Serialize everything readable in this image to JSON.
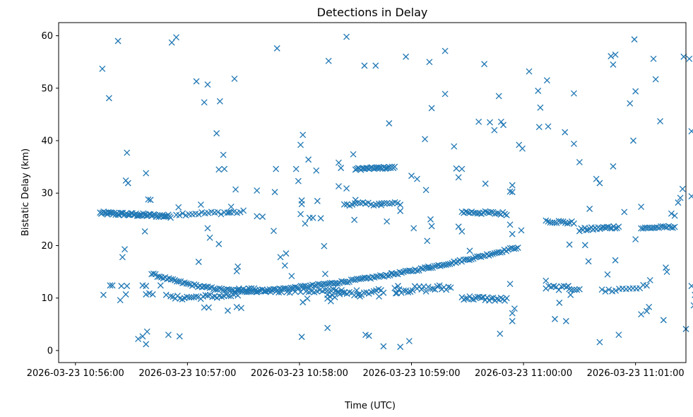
{
  "chart_data": {
    "type": "scatter",
    "title": "Detections in Delay",
    "xlabel": "Time (UTC)",
    "ylabel": "Bistatic Delay (km)",
    "marker": "x",
    "color": "#1f77b4",
    "xlim": [
      -0.15,
      5.45
    ],
    "ylim": [
      -2.3,
      62.5
    ],
    "x_unit": "minutes after 2026-03-23 10:56:00 UTC",
    "x_ticks": [
      {
        "value": 0,
        "label": "2026-03-23 10:56:00"
      },
      {
        "value": 1,
        "label": "2026-03-23 10:57:00"
      },
      {
        "value": 2,
        "label": "2026-03-23 10:58:00"
      },
      {
        "value": 3,
        "label": "2026-03-23 10:59:00"
      },
      {
        "value": 4,
        "label": "2026-03-23 11:00:00"
      },
      {
        "value": 5,
        "label": "2026-03-23 11:01:00"
      }
    ],
    "y_ticks": [
      0,
      10,
      20,
      30,
      40,
      50,
      60
    ],
    "tracks": [
      {
        "name": "upper-track-a",
        "x": [
          0.22,
          0.85
        ],
        "y": [
          26.2,
          25.6
        ],
        "n": 60,
        "jitter": 0.3
      },
      {
        "name": "upper-track-b",
        "x": [
          0.9,
          1.5
        ],
        "y": [
          26.0,
          26.4
        ],
        "n": 22,
        "jitter": 0.3
      },
      {
        "name": "upper-track-c",
        "x": [
          2.5,
          2.85
        ],
        "y": [
          34.6,
          34.9
        ],
        "n": 30,
        "jitter": 0.2
      },
      {
        "name": "upper-track-d",
        "x": [
          2.4,
          2.9
        ],
        "y": [
          27.9,
          28.0
        ],
        "n": 22,
        "jitter": 0.3
      },
      {
        "name": "upper-track-e",
        "x": [
          3.45,
          3.85
        ],
        "y": [
          26.4,
          26.1
        ],
        "n": 24,
        "jitter": 0.3
      },
      {
        "name": "upper-track-f",
        "x": [
          4.2,
          4.45
        ],
        "y": [
          24.7,
          24.3
        ],
        "n": 14,
        "jitter": 0.3
      },
      {
        "name": "upper-track-g",
        "x": [
          4.5,
          4.85
        ],
        "y": [
          23.0,
          23.6
        ],
        "n": 24,
        "jitter": 0.3
      },
      {
        "name": "upper-track-h",
        "x": [
          5.05,
          5.35
        ],
        "y": [
          23.3,
          23.6
        ],
        "n": 18,
        "jitter": 0.2
      },
      {
        "name": "curve-track",
        "x": [
          0.68,
          3.95
        ],
        "y": [
          14.6,
          19.7
        ],
        "n": 190,
        "jitter": 0.2,
        "curve_min": 11.3,
        "curve_min_x": 1.6
      },
      {
        "name": "low-track-a",
        "x": [
          0.85,
          1.45
        ],
        "y": [
          10.0,
          10.5
        ],
        "n": 30,
        "jitter": 0.4
      },
      {
        "name": "low-track-b",
        "x": [
          1.45,
          2.4
        ],
        "y": [
          11.5,
          11.3
        ],
        "n": 40,
        "jitter": 0.4
      },
      {
        "name": "low-track-c",
        "x": [
          2.25,
          2.75
        ],
        "y": [
          10.5,
          11.5
        ],
        "n": 24,
        "jitter": 0.5
      },
      {
        "name": "low-track-d",
        "x": [
          2.85,
          3.35
        ],
        "y": [
          11.5,
          12.0
        ],
        "n": 26,
        "jitter": 0.6
      },
      {
        "name": "low-track-e",
        "x": [
          3.45,
          3.85
        ],
        "y": [
          10.1,
          9.7
        ],
        "n": 24,
        "jitter": 0.4
      },
      {
        "name": "low-track-f",
        "x": [
          4.2,
          4.5
        ],
        "y": [
          12.0,
          11.8
        ],
        "n": 14,
        "jitter": 0.4
      },
      {
        "name": "low-track-g",
        "x": [
          4.7,
          5.1
        ],
        "y": [
          11.3,
          12.2
        ],
        "n": 14,
        "jitter": 0.4
      }
    ],
    "points": [
      [
        0.24,
        53.7
      ],
      [
        0.3,
        48.1
      ],
      [
        0.38,
        59.0
      ],
      [
        0.42,
        17.8
      ],
      [
        0.44,
        19.3
      ],
      [
        0.45,
        32.4
      ],
      [
        0.46,
        37.7
      ],
      [
        0.47,
        31.9
      ],
      [
        0.25,
        10.6
      ],
      [
        0.31,
        12.4
      ],
      [
        0.33,
        12.4
      ],
      [
        0.4,
        9.6
      ],
      [
        0.41,
        12.3
      ],
      [
        0.46,
        12.3
      ],
      [
        0.45,
        10.7
      ],
      [
        0.56,
        2.2
      ],
      [
        0.6,
        2.7
      ],
      [
        0.64,
        3.6
      ],
      [
        0.63,
        1.2
      ],
      [
        0.6,
        12.4
      ],
      [
        0.63,
        12.3
      ],
      [
        0.62,
        22.7
      ],
      [
        0.63,
        33.8
      ],
      [
        0.63,
        10.7
      ],
      [
        0.66,
        10.9
      ],
      [
        0.69,
        10.7
      ],
      [
        0.65,
        28.8
      ],
      [
        0.67,
        28.7
      ],
      [
        0.76,
        12.4
      ],
      [
        0.81,
        10.6
      ],
      [
        0.83,
        3.0
      ],
      [
        0.86,
        58.7
      ],
      [
        0.9,
        59.7
      ],
      [
        0.93,
        2.7
      ],
      [
        0.92,
        27.3
      ],
      [
        1.08,
        51.3
      ],
      [
        1.12,
        27.8
      ],
      [
        1.15,
        47.3
      ],
      [
        1.18,
        50.7
      ],
      [
        1.18,
        23.3
      ],
      [
        1.2,
        21.5
      ],
      [
        1.26,
        41.4
      ],
      [
        1.29,
        47.5
      ],
      [
        1.32,
        37.3
      ],
      [
        1.33,
        34.6
      ],
      [
        1.28,
        34.5
      ],
      [
        1.28,
        20.3
      ],
      [
        1.1,
        16.9
      ],
      [
        1.15,
        8.2
      ],
      [
        1.19,
        8.2
      ],
      [
        1.37,
        26.3
      ],
      [
        1.39,
        27.4
      ],
      [
        1.42,
        51.8
      ],
      [
        1.43,
        30.7
      ],
      [
        1.44,
        15.1
      ],
      [
        1.45,
        16.0
      ],
      [
        1.44,
        8.3
      ],
      [
        1.48,
        8.1
      ],
      [
        1.46,
        11.8
      ],
      [
        1.36,
        7.6
      ],
      [
        1.55,
        11.8
      ],
      [
        1.62,
        30.5
      ],
      [
        1.62,
        25.6
      ],
      [
        1.67,
        25.5
      ],
      [
        1.61,
        11.5
      ],
      [
        1.8,
        57.6
      ],
      [
        1.79,
        34.6
      ],
      [
        1.78,
        30.2
      ],
      [
        1.77,
        22.8
      ],
      [
        1.83,
        17.8
      ],
      [
        1.88,
        18.5
      ],
      [
        1.87,
        16.2
      ],
      [
        1.93,
        14.2
      ],
      [
        1.97,
        34.6
      ],
      [
        1.99,
        32.3
      ],
      [
        2.01,
        39.2
      ],
      [
        2.03,
        41.1
      ],
      [
        2.02,
        28.6
      ],
      [
        2.02,
        27.9
      ],
      [
        2.01,
        26.0
      ],
      [
        2.05,
        24.2
      ],
      [
        2.03,
        9.2
      ],
      [
        2.07,
        9.9
      ],
      [
        2.02,
        2.6
      ],
      [
        2.08,
        36.4
      ],
      [
        2.09,
        25.3
      ],
      [
        2.12,
        25.3
      ],
      [
        2.16,
        28.5
      ],
      [
        2.15,
        34.3
      ],
      [
        2.19,
        25.2
      ],
      [
        2.22,
        19.9
      ],
      [
        2.23,
        14.6
      ],
      [
        2.25,
        4.3
      ],
      [
        2.25,
        9.9
      ],
      [
        2.26,
        55.2
      ],
      [
        2.28,
        9.4
      ],
      [
        2.35,
        35.8
      ],
      [
        2.37,
        34.8
      ],
      [
        2.35,
        31.3
      ],
      [
        2.42,
        30.9
      ],
      [
        2.48,
        37.4
      ],
      [
        2.49,
        24.9
      ],
      [
        2.5,
        28.7
      ],
      [
        2.52,
        10.6
      ],
      [
        2.54,
        10.3
      ],
      [
        2.59,
        3.0
      ],
      [
        2.62,
        2.8
      ],
      [
        2.58,
        54.3
      ],
      [
        2.42,
        59.8
      ],
      [
        2.68,
        54.3
      ],
      [
        2.71,
        10.3
      ],
      [
        2.73,
        27.7
      ],
      [
        2.75,
        0.8
      ],
      [
        2.78,
        24.6
      ],
      [
        2.8,
        43.3
      ],
      [
        2.82,
        14.7
      ],
      [
        2.86,
        10.9
      ],
      [
        2.88,
        12.3
      ],
      [
        2.9,
        0.7
      ],
      [
        2.9,
        26.6
      ],
      [
        2.95,
        56.0
      ],
      [
        2.98,
        1.8
      ],
      [
        3.0,
        33.3
      ],
      [
        3.05,
        32.7
      ],
      [
        3.02,
        23.3
      ],
      [
        3.12,
        40.3
      ],
      [
        3.13,
        30.6
      ],
      [
        3.14,
        20.9
      ],
      [
        3.16,
        55.0
      ],
      [
        3.18,
        46.2
      ],
      [
        3.17,
        25.0
      ],
      [
        3.18,
        23.7
      ],
      [
        3.15,
        16.0
      ],
      [
        3.3,
        57.1
      ],
      [
        3.3,
        48.9
      ],
      [
        3.38,
        38.9
      ],
      [
        3.4,
        34.7
      ],
      [
        3.42,
        33.0
      ],
      [
        3.45,
        34.6
      ],
      [
        3.42,
        23.6
      ],
      [
        3.45,
        22.7
      ],
      [
        3.52,
        19.0
      ],
      [
        3.6,
        43.6
      ],
      [
        3.65,
        54.6
      ],
      [
        3.66,
        31.8
      ],
      [
        3.7,
        43.5
      ],
      [
        3.74,
        42.0
      ],
      [
        3.78,
        48.5
      ],
      [
        3.8,
        43.6
      ],
      [
        3.82,
        43.0
      ],
      [
        3.79,
        3.2
      ],
      [
        3.88,
        30.3
      ],
      [
        3.9,
        31.5
      ],
      [
        3.9,
        30.2
      ],
      [
        3.88,
        24.0
      ],
      [
        3.9,
        22.2
      ],
      [
        3.88,
        12.7
      ],
      [
        3.9,
        7.1
      ],
      [
        3.9,
        5.6
      ],
      [
        3.92,
        8.0
      ],
      [
        3.96,
        39.2
      ],
      [
        3.99,
        38.5
      ],
      [
        3.98,
        22.9
      ],
      [
        4.05,
        53.2
      ],
      [
        4.13,
        49.5
      ],
      [
        4.15,
        46.3
      ],
      [
        4.14,
        42.6
      ],
      [
        4.21,
        51.5
      ],
      [
        4.22,
        42.7
      ],
      [
        4.2,
        13.3
      ],
      [
        4.28,
        6.0
      ],
      [
        4.27,
        12.3
      ],
      [
        4.32,
        9.1
      ],
      [
        4.37,
        41.6
      ],
      [
        4.41,
        20.2
      ],
      [
        4.38,
        5.6
      ],
      [
        4.42,
        10.6
      ],
      [
        4.4,
        12.3
      ],
      [
        4.45,
        49.0
      ],
      [
        4.45,
        39.4
      ],
      [
        4.5,
        35.9
      ],
      [
        4.55,
        20.1
      ],
      [
        4.58,
        17.0
      ],
      [
        4.59,
        27.0
      ],
      [
        4.65,
        32.7
      ],
      [
        4.68,
        31.9
      ],
      [
        4.68,
        1.6
      ],
      [
        4.75,
        14.5
      ],
      [
        4.78,
        56.1
      ],
      [
        4.8,
        54.5
      ],
      [
        4.82,
        56.4
      ],
      [
        4.8,
        35.1
      ],
      [
        4.82,
        17.2
      ],
      [
        4.85,
        3.0
      ],
      [
        4.9,
        26.4
      ],
      [
        4.95,
        47.1
      ],
      [
        4.98,
        40.0
      ],
      [
        4.99,
        59.3
      ],
      [
        5.0,
        49.4
      ],
      [
        5.0,
        21.2
      ],
      [
        5.05,
        27.4
      ],
      [
        5.05,
        6.9
      ],
      [
        5.1,
        7.5
      ],
      [
        5.12,
        8.3
      ],
      [
        5.13,
        13.4
      ],
      [
        5.16,
        55.6
      ],
      [
        5.18,
        51.7
      ],
      [
        5.22,
        43.7
      ],
      [
        5.25,
        5.8
      ],
      [
        5.27,
        15.8
      ],
      [
        5.28,
        15.0
      ],
      [
        5.32,
        26.1
      ],
      [
        5.35,
        25.7
      ],
      [
        5.38,
        28.2
      ],
      [
        5.4,
        29.1
      ],
      [
        5.42,
        30.8
      ],
      [
        5.45,
        4.1
      ],
      [
        5.43,
        56.0
      ],
      [
        5.48,
        55.6
      ],
      [
        5.5,
        41.8
      ],
      [
        5.5,
        29.4
      ],
      [
        5.55,
        35.6
      ],
      [
        5.5,
        12.3
      ],
      [
        5.52,
        8.6
      ],
      [
        5.58,
        10.4
      ],
      [
        5.53,
        10.6
      ],
      [
        5.6,
        26.1
      ],
      [
        5.62,
        26.0
      ]
    ]
  }
}
